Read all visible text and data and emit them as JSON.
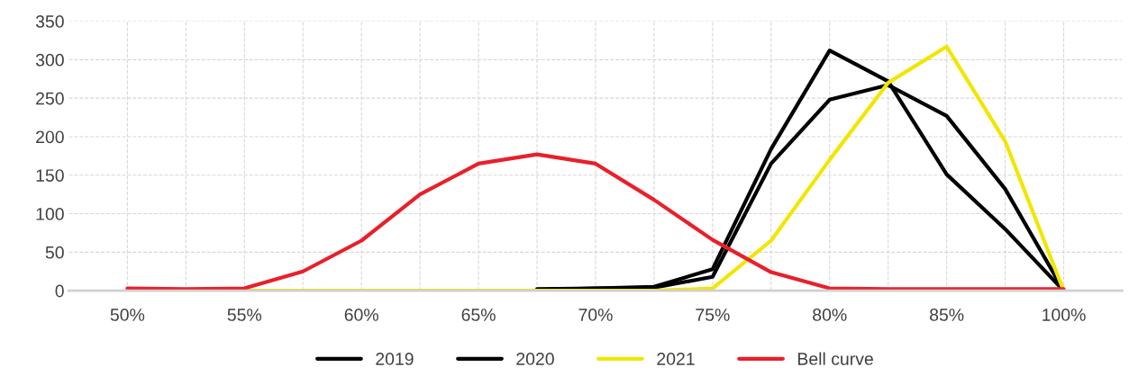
{
  "chart_data": {
    "type": "line",
    "categories": [
      "50%",
      null,
      "55%",
      null,
      "60%",
      null,
      "65%",
      null,
      "70%",
      null,
      "75%",
      null,
      "80%",
      null,
      "85%",
      null,
      "100%"
    ],
    "series": [
      {
        "name": "2019",
        "color": "#000000",
        "values": [
          null,
          null,
          null,
          null,
          null,
          null,
          null,
          2,
          3,
          5,
          28,
          184,
          312,
          272,
          151,
          80,
          0
        ]
      },
      {
        "name": "2020",
        "color": "#000000",
        "values": [
          null,
          null,
          null,
          null,
          null,
          null,
          null,
          1,
          3,
          4,
          18,
          165,
          248,
          267,
          227,
          132,
          0
        ]
      },
      {
        "name": "2021",
        "color": "#f2e600",
        "values": [
          null,
          null,
          0,
          0,
          0,
          0,
          0,
          0,
          0,
          0,
          3,
          65,
          170,
          270,
          317,
          194,
          0
        ]
      },
      {
        "name": "Bell curve",
        "color": "#e8202a",
        "values": [
          3,
          2,
          3,
          25,
          65,
          125,
          165,
          177,
          165,
          118,
          66,
          24,
          3,
          2,
          2,
          2,
          2
        ]
      }
    ],
    "ylim": [
      0,
      350
    ],
    "yticks": [
      0,
      50,
      100,
      150,
      200,
      250,
      300,
      350
    ],
    "grid": true,
    "legend": "bottom",
    "marker": "none",
    "line_style": "solid"
  }
}
